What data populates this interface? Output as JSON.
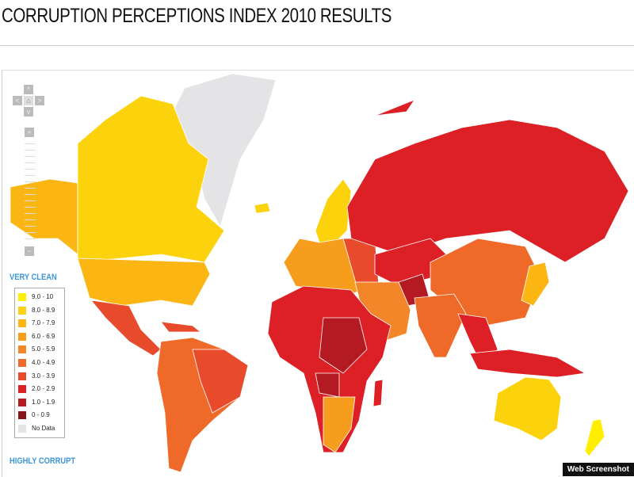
{
  "title": "CORRUPTION PERCEPTIONS INDEX 2010 RESULTS",
  "legend": {
    "top_label": "VERY CLEAN",
    "bottom_label": "HIGHLY CORRUPT",
    "items": [
      {
        "label": "9.0 - 10",
        "color": "#ffee00"
      },
      {
        "label": "8.0 - 8.9",
        "color": "#fcd20c"
      },
      {
        "label": "7.0 - 7.9",
        "color": "#fbb614"
      },
      {
        "label": "6.0 - 6.9",
        "color": "#f79d1e"
      },
      {
        "label": "5.0 - 5.9",
        "color": "#f4862a"
      },
      {
        "label": "4.0 - 4.9",
        "color": "#ef6a28"
      },
      {
        "label": "3.0 - 3.9",
        "color": "#e84a2c"
      },
      {
        "label": "2.0 - 2.9",
        "color": "#dd1f26"
      },
      {
        "label": "1.0 - 1.9",
        "color": "#b41a22"
      },
      {
        "label": "0 - 0.9",
        "color": "#87141b"
      },
      {
        "label": "No Data",
        "color": "#e4e4e6"
      }
    ]
  },
  "badge": "Web Screenshot"
}
